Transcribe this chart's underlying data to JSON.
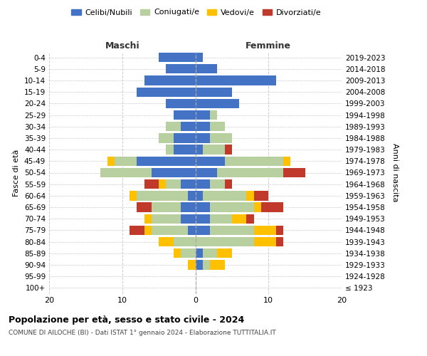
{
  "age_groups": [
    "100+",
    "95-99",
    "90-94",
    "85-89",
    "80-84",
    "75-79",
    "70-74",
    "65-69",
    "60-64",
    "55-59",
    "50-54",
    "45-49",
    "40-44",
    "35-39",
    "30-34",
    "25-29",
    "20-24",
    "15-19",
    "10-14",
    "5-9",
    "0-4"
  ],
  "birth_years": [
    "≤ 1923",
    "1924-1928",
    "1929-1933",
    "1934-1938",
    "1939-1943",
    "1944-1948",
    "1949-1953",
    "1954-1958",
    "1959-1963",
    "1964-1968",
    "1969-1973",
    "1974-1978",
    "1979-1983",
    "1984-1988",
    "1989-1993",
    "1994-1998",
    "1999-2003",
    "2004-2008",
    "2009-2013",
    "2014-2018",
    "2019-2023"
  ],
  "colors": {
    "celibi": "#4472c4",
    "coniugati": "#b8cfa0",
    "vedovi": "#ffc000",
    "divorziati": "#c0392b"
  },
  "maschi": {
    "celibi": [
      0,
      0,
      0,
      0,
      0,
      1,
      2,
      2,
      1,
      2,
      6,
      8,
      3,
      3,
      2,
      3,
      4,
      8,
      7,
      4,
      5
    ],
    "coniugati": [
      0,
      0,
      0,
      2,
      3,
      5,
      4,
      4,
      7,
      2,
      7,
      3,
      1,
      2,
      2,
      0,
      0,
      0,
      0,
      0,
      0
    ],
    "vedovi": [
      0,
      0,
      1,
      1,
      2,
      1,
      1,
      0,
      1,
      1,
      0,
      1,
      0,
      0,
      0,
      0,
      0,
      0,
      0,
      0,
      0
    ],
    "divorziati": [
      0,
      0,
      0,
      0,
      0,
      2,
      0,
      2,
      0,
      2,
      0,
      0,
      0,
      0,
      0,
      0,
      0,
      0,
      0,
      0,
      0
    ]
  },
  "femmine": {
    "celibi": [
      0,
      0,
      1,
      1,
      0,
      2,
      2,
      2,
      1,
      2,
      3,
      4,
      1,
      2,
      2,
      2,
      6,
      5,
      11,
      3,
      1
    ],
    "coniugati": [
      0,
      0,
      1,
      2,
      8,
      6,
      3,
      6,
      6,
      2,
      9,
      8,
      3,
      3,
      2,
      1,
      0,
      0,
      0,
      0,
      0
    ],
    "vedovi": [
      0,
      0,
      2,
      2,
      3,
      3,
      2,
      1,
      1,
      0,
      0,
      1,
      0,
      0,
      0,
      0,
      0,
      0,
      0,
      0,
      0
    ],
    "divorziati": [
      0,
      0,
      0,
      0,
      1,
      1,
      1,
      3,
      2,
      1,
      3,
      0,
      1,
      0,
      0,
      0,
      0,
      0,
      0,
      0,
      0
    ]
  },
  "xlim": [
    -20,
    20
  ],
  "xticks": [
    -20,
    -10,
    0,
    10,
    20
  ],
  "xticklabels": [
    "20",
    "10",
    "0",
    "10",
    "20"
  ],
  "title": "Popolazione per età, sesso e stato civile - 2024",
  "subtitle": "COMUNE DI AILOCHE (BI) - Dati ISTAT 1° gennaio 2024 - Elaborazione TUTTITALIA.IT",
  "ylabel_left": "Fasce di età",
  "ylabel_right": "Anni di nascita",
  "label_maschi": "Maschi",
  "label_femmine": "Femmine",
  "legend_labels": [
    "Celibi/Nubili",
    "Coniugati/e",
    "Vedovi/e",
    "Divorziati/e"
  ],
  "background_color": "#ffffff",
  "grid_color": "#cccccc"
}
